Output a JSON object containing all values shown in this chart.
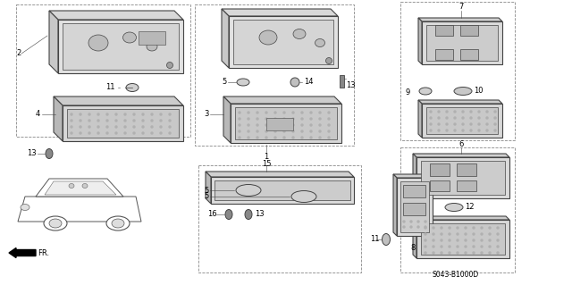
{
  "bg_color": "#ffffff",
  "diagram_code": "S043-B1000D",
  "line_color": "#444444",
  "fill_light": "#e8e8e8",
  "fill_dark": "#c0c0c0",
  "fill_med": "#d4d4d4"
}
